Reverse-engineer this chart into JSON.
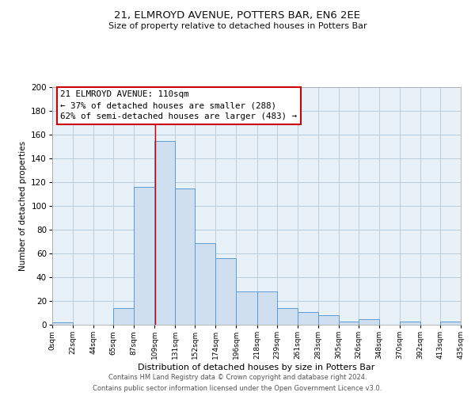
{
  "title1": "21, ELMROYD AVENUE, POTTERS BAR, EN6 2EE",
  "title2": "Size of property relative to detached houses in Potters Bar",
  "xlabel": "Distribution of detached houses by size in Potters Bar",
  "ylabel": "Number of detached properties",
  "footnote1": "Contains HM Land Registry data © Crown copyright and database right 2024.",
  "footnote2": "Contains public sector information licensed under the Open Government Licence v3.0.",
  "bar_edges": [
    0,
    22,
    44,
    65,
    87,
    109,
    131,
    152,
    174,
    196,
    218,
    239,
    261,
    283,
    305,
    326,
    348,
    370,
    392,
    413,
    435
  ],
  "bar_heights": [
    2,
    0,
    0,
    14,
    116,
    155,
    115,
    69,
    56,
    28,
    28,
    14,
    11,
    8,
    3,
    5,
    0,
    3,
    0,
    3
  ],
  "tick_labels": [
    "0sqm",
    "22sqm",
    "44sqm",
    "65sqm",
    "87sqm",
    "109sqm",
    "131sqm",
    "152sqm",
    "174sqm",
    "196sqm",
    "218sqm",
    "239sqm",
    "261sqm",
    "283sqm",
    "305sqm",
    "326sqm",
    "348sqm",
    "370sqm",
    "392sqm",
    "413sqm",
    "435sqm"
  ],
  "bar_color": "#cfdff0",
  "bar_edge_color": "#5b9bd5",
  "grid_color": "#b8cee0",
  "bg_color": "#e8f0f8",
  "annotation_line0": "21 ELMROYD AVENUE: 110sqm",
  "annotation_line1": "← 37% of detached houses are smaller (288)",
  "annotation_line2": "62% of semi-detached houses are larger (483) →",
  "vline_x": 110,
  "vline_color": "#cc0000",
  "annotation_box_edge": "#cc0000",
  "ylim": [
    0,
    200
  ],
  "yticks": [
    0,
    20,
    40,
    60,
    80,
    100,
    120,
    140,
    160,
    180,
    200
  ],
  "title1_fontsize": 9.5,
  "title2_fontsize": 8.0,
  "xlabel_fontsize": 8.0,
  "ylabel_fontsize": 7.5,
  "xtick_fontsize": 6.5,
  "ytick_fontsize": 7.5,
  "annot_fontsize": 7.8,
  "footnote_fontsize": 6.0
}
